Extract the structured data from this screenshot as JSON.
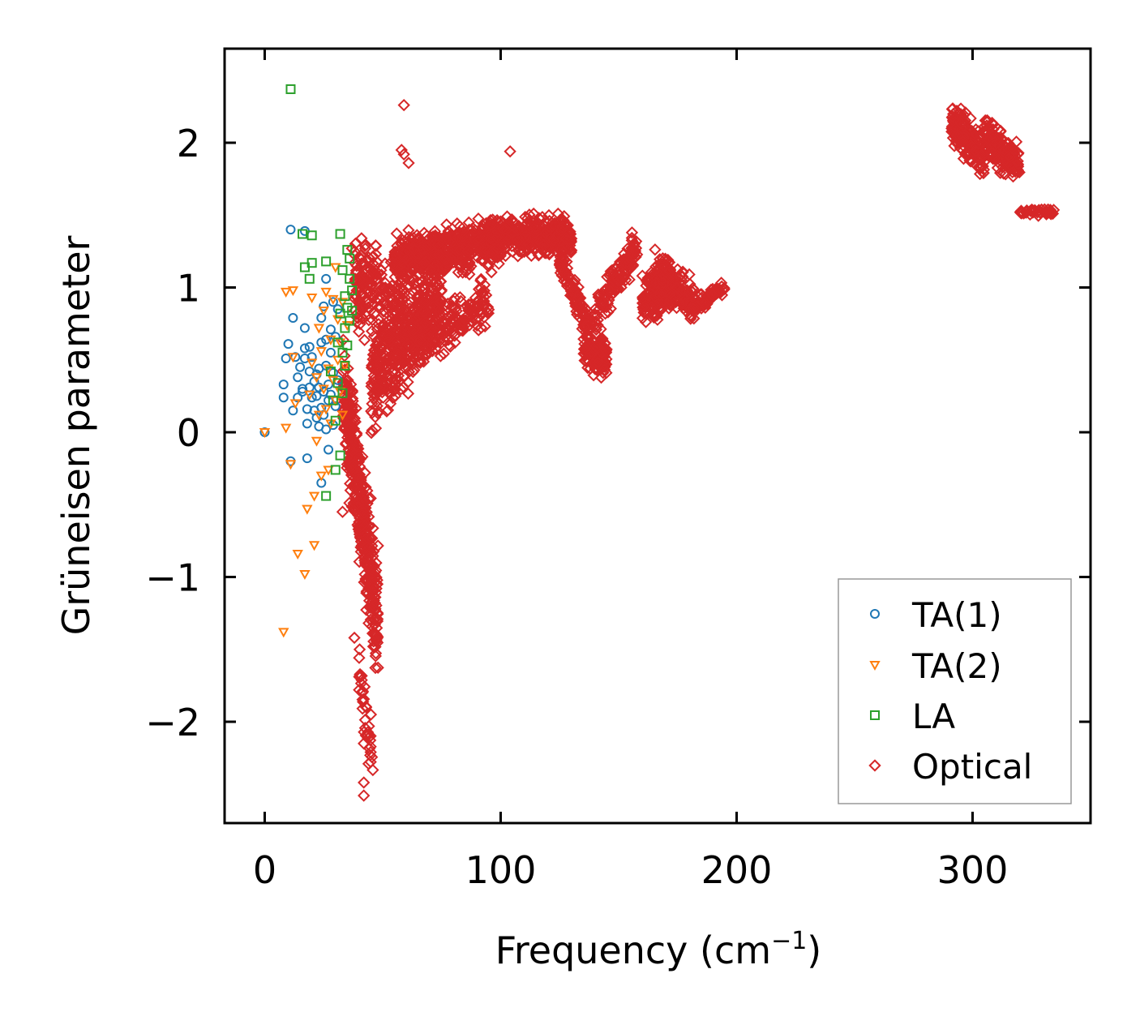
{
  "chart_data": {
    "type": "scatter",
    "title": "",
    "xlabel": "Frequency (cm",
    "xlabel_sup": "−1",
    "xlabel_end": ")",
    "ylabel": "Grüneisen parameter",
    "xlim": [
      -17,
      350
    ],
    "ylim": [
      -2.7,
      2.65
    ],
    "xticks": [
      0,
      100,
      200,
      300
    ],
    "xtick_labels": [
      "0",
      "100",
      "200",
      "300"
    ],
    "yticks": [
      -2,
      -1,
      0,
      1,
      2
    ],
    "ytick_labels": [
      "−2",
      "−1",
      "0",
      "1",
      "2"
    ],
    "legend_position": "lower-right",
    "series": [
      {
        "name": "TA(1)",
        "marker": "circle",
        "color": "#1f77b4",
        "points": [
          [
            0,
            0
          ],
          [
            8,
            0.33
          ],
          [
            8,
            0.24
          ],
          [
            9,
            0.51
          ],
          [
            10,
            0.61
          ],
          [
            11,
            1.4
          ],
          [
            11,
            -0.2
          ],
          [
            12,
            0.79
          ],
          [
            12,
            0.15
          ],
          [
            13,
            0.52
          ],
          [
            14,
            0.38
          ],
          [
            14,
            0.24
          ],
          [
            15,
            0.45
          ],
          [
            16,
            0.3
          ],
          [
            16,
            0.28
          ],
          [
            17,
            0.58
          ],
          [
            17,
            0.51
          ],
          [
            17,
            0.72
          ],
          [
            17,
            1.39
          ],
          [
            18,
            0.06
          ],
          [
            18,
            0.16
          ],
          [
            18,
            -0.18
          ],
          [
            19,
            0.42
          ],
          [
            19,
            0.31
          ],
          [
            19,
            0.59
          ],
          [
            20,
            0.52
          ],
          [
            20,
            0.24
          ],
          [
            21,
            0.35
          ],
          [
            21,
            0.15
          ],
          [
            22,
            0.1
          ],
          [
            22,
            0.25
          ],
          [
            22,
            0.4
          ],
          [
            23,
            0.44
          ],
          [
            23,
            0.04
          ],
          [
            23,
            0.31
          ],
          [
            24,
            0.62
          ],
          [
            24,
            0.17
          ],
          [
            24,
            0.79
          ],
          [
            24,
            -0.35
          ],
          [
            25,
            0.87
          ],
          [
            25,
            0.28
          ],
          [
            25,
            0.12
          ],
          [
            26,
            0.46
          ],
          [
            26,
            0.64
          ],
          [
            26,
            0.02
          ],
          [
            26,
            1.06
          ],
          [
            27,
            0.22
          ],
          [
            27,
            0.33
          ],
          [
            27,
            -0.12
          ],
          [
            28,
            0.71
          ],
          [
            28,
            0.55
          ],
          [
            28,
            0.26
          ],
          [
            29,
            0.05
          ],
          [
            29,
            0.9
          ],
          [
            29,
            0.41
          ],
          [
            30,
            0.18
          ],
          [
            30,
            0.66
          ],
          [
            31,
            0.36
          ],
          [
            31,
            0.85
          ]
        ]
      },
      {
        "name": "TA(2)",
        "marker": "triangle-down",
        "color": "#ff7f0e",
        "points": [
          [
            0,
            0
          ],
          [
            8,
            -1.38
          ],
          [
            9,
            0.97
          ],
          [
            9,
            0.03
          ],
          [
            11,
            -0.22
          ],
          [
            12,
            0.98
          ],
          [
            12,
            0.52
          ],
          [
            13,
            0.2
          ],
          [
            14,
            -0.84
          ],
          [
            17,
            -0.98
          ],
          [
            18,
            -0.53
          ],
          [
            19,
            0.26
          ],
          [
            20,
            0.93
          ],
          [
            20,
            0.48
          ],
          [
            21,
            -0.78
          ],
          [
            21,
            -0.44
          ],
          [
            22,
            0.38
          ],
          [
            22,
            -0.06
          ],
          [
            23,
            0.72
          ],
          [
            23,
            0.12
          ],
          [
            24,
            0.56
          ],
          [
            24,
            -0.3
          ],
          [
            25,
            0.84
          ],
          [
            25,
            0.3
          ],
          [
            26,
            0.16
          ],
          [
            26,
            0.97
          ],
          [
            27,
            -0.26
          ],
          [
            27,
            0.44
          ],
          [
            28,
            0.64
          ],
          [
            28,
            0.06
          ],
          [
            29,
            0.92
          ],
          [
            29,
            0.36
          ],
          [
            30,
            0.22
          ],
          [
            30,
            1.14
          ],
          [
            31,
            0.5
          ],
          [
            31,
            0.78
          ],
          [
            32,
            0.28
          ],
          [
            32,
            0.62
          ],
          [
            33,
            0.12
          ],
          [
            33,
            0.9
          ],
          [
            34,
            0.46
          ],
          [
            35,
            0.74
          ]
        ]
      },
      {
        "name": "LA",
        "marker": "square",
        "color": "#2ca02c",
        "points": [
          [
            11,
            2.37
          ],
          [
            16,
            1.37
          ],
          [
            17,
            1.14
          ],
          [
            19,
            1.06
          ],
          [
            20,
            1.17
          ],
          [
            20,
            1.36
          ],
          [
            26,
            -0.44
          ],
          [
            26,
            1.18
          ],
          [
            28,
            0.42
          ],
          [
            29,
            0.22
          ],
          [
            30,
            -0.26
          ],
          [
            30,
            0.08
          ],
          [
            31,
            0.62
          ],
          [
            31,
            0.34
          ],
          [
            32,
            1.37
          ],
          [
            32,
            0.82
          ],
          [
            32,
            -0.16
          ],
          [
            33,
            1.12
          ],
          [
            33,
            0.55
          ],
          [
            33,
            0.27
          ],
          [
            34,
            0.94
          ],
          [
            34,
            0.72
          ],
          [
            34,
            0.46
          ],
          [
            35,
            1.26
          ],
          [
            35,
            0.86
          ],
          [
            35,
            0.6
          ],
          [
            36,
            1.06
          ],
          [
            36,
            0.77
          ],
          [
            36,
            1.2
          ],
          [
            37,
            0.98
          ],
          [
            37,
            0.84
          ]
        ]
      },
      {
        "name": "Optical",
        "marker": "diamond",
        "color": "#d62728",
        "clusters": [
          {
            "x": [
              33,
              48
            ],
            "yc": [
              0.3,
              -1.3
            ],
            "spread": 0.6,
            "count": 420
          },
          {
            "x": [
              40,
              46
            ],
            "yc": [
              -1.6,
              -2.3
            ],
            "spread": 0.25,
            "count": 40
          },
          {
            "x": [
              38,
              60
            ],
            "yc": [
              1.0,
              0.9
            ],
            "spread": 0.5,
            "count": 220
          },
          {
            "x": [
              45,
              75
            ],
            "yc": [
              0.3,
              1.0
            ],
            "spread": 0.45,
            "count": 420
          },
          {
            "x": [
              55,
              100
            ],
            "yc": [
              1.2,
              1.3
            ],
            "spread": 0.22,
            "count": 520
          },
          {
            "x": [
              60,
              95
            ],
            "yc": [
              0.6,
              0.9
            ],
            "spread": 0.25,
            "count": 200
          },
          {
            "x": [
              95,
              130
            ],
            "yc": [
              1.35,
              1.35
            ],
            "spread": 0.18,
            "count": 420
          },
          {
            "x": [
              125,
              138
            ],
            "yc": [
              1.2,
              0.7
            ],
            "spread": 0.15,
            "count": 110
          },
          {
            "x": [
              135,
              145
            ],
            "yc": [
              0.6,
              0.5
            ],
            "spread": 0.2,
            "count": 110
          },
          {
            "x": [
              140,
              158
            ],
            "yc": [
              0.8,
              1.3
            ],
            "spread": 0.18,
            "count": 140
          },
          {
            "x": [
              160,
              172
            ],
            "yc": [
              0.9,
              1.05
            ],
            "spread": 0.25,
            "count": 170
          },
          {
            "x": [
              165,
              182
            ],
            "yc": [
              1.1,
              0.9
            ],
            "spread": 0.2,
            "count": 160
          },
          {
            "x": [
              180,
              195
            ],
            "yc": [
              0.85,
              1.0
            ],
            "spread": 0.08,
            "count": 70
          },
          {
            "x": [
              291,
              305
            ],
            "yc": [
              2.15,
              1.9
            ],
            "spread": 0.2,
            "count": 170
          },
          {
            "x": [
              305,
              320
            ],
            "yc": [
              2.05,
              1.85
            ],
            "spread": 0.2,
            "count": 170
          },
          {
            "x": [
              320,
              335
            ],
            "yc": [
              1.52,
              1.52
            ],
            "spread": 0.03,
            "count": 40
          }
        ],
        "outliers": [
          [
            59,
            2.26
          ],
          [
            58,
            1.95
          ],
          [
            59,
            1.92
          ],
          [
            61,
            1.86
          ],
          [
            104,
            1.94
          ],
          [
            42,
            -2.15
          ],
          [
            44,
            -2.29
          ],
          [
            42,
            -2.42
          ],
          [
            42,
            -2.51
          ],
          [
            43,
            -1.9
          ],
          [
            45,
            -1.95
          ],
          [
            40,
            -1.78
          ],
          [
            38,
            -1.42
          ],
          [
            47,
            1.29
          ],
          [
            37,
            1.27
          ],
          [
            39,
            0.98
          ],
          [
            33,
            -0.55
          ],
          [
            36,
            -0.18
          ]
        ]
      }
    ]
  }
}
